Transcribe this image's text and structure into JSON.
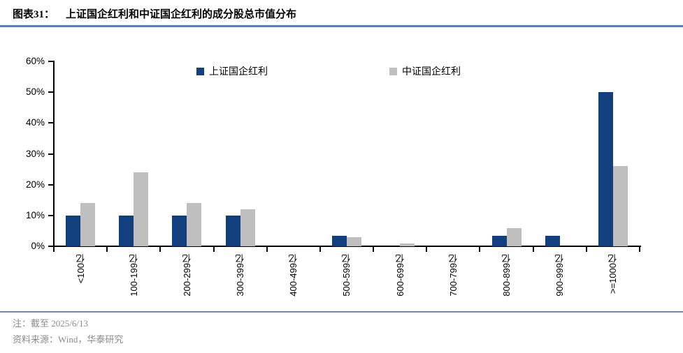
{
  "header": {
    "label": "图表31：",
    "title": "上证国企红利和中证国企红利的成分股总市值分布"
  },
  "colors": {
    "navy": "#12407E",
    "gray": "#BFBFBF",
    "rule_top": "#5C80A8",
    "rule_bottom": "#6C8CB2",
    "axis": "#000000",
    "note_text": "#8C8C8C"
  },
  "chart_data": {
    "type": "bar",
    "title": "上证国企红利和中证国企红利的成分股总市值分布",
    "categories": [
      "<100亿",
      "100-199亿",
      "200-299亿",
      "300-399亿",
      "400-499亿",
      "500-599亿",
      "600-699亿",
      "700-799亿",
      "800-899亿",
      "900-999亿",
      ">=1000亿"
    ],
    "series": [
      {
        "name": "上证国企红利",
        "color": "#12407E",
        "values": [
          10,
          10,
          10,
          10,
          0,
          3.3,
          0,
          0,
          3.3,
          3.3,
          50
        ]
      },
      {
        "name": "中证国企红利",
        "color": "#BFBFBF",
        "values": [
          14,
          24,
          14,
          12,
          0,
          3,
          1,
          0,
          6,
          0,
          26
        ]
      }
    ],
    "xlabel": "",
    "ylabel": "",
    "ylim": [
      0,
      60
    ],
    "yticks": [
      "0%",
      "10%",
      "20%",
      "30%",
      "40%",
      "50%",
      "60%"
    ],
    "grid": false,
    "legend_position": "top-center"
  },
  "notes": {
    "note": "注：截至 2025/6/13",
    "source": "资料来源：Wind，华泰研究"
  }
}
